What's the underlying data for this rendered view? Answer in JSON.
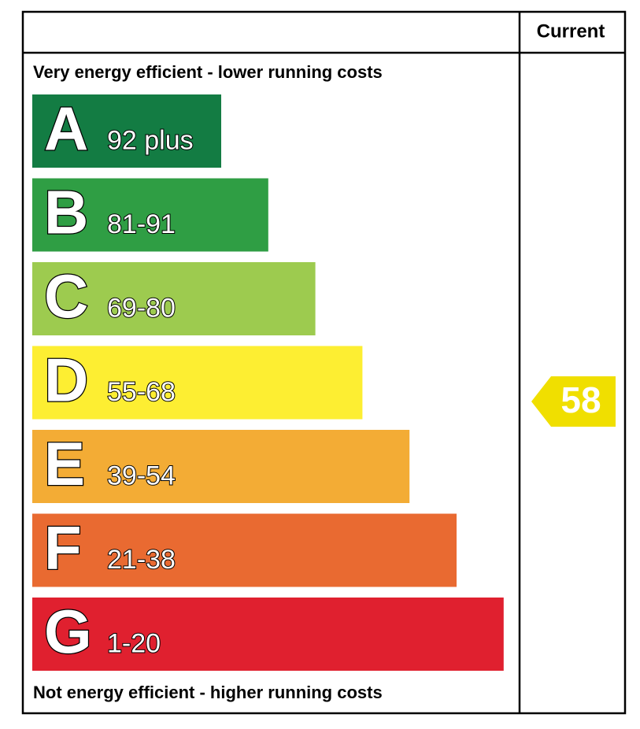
{
  "header": {
    "column": "Current"
  },
  "top_label": "Very energy efficient - lower running costs",
  "bottom_label": "Not energy efficient - higher running costs",
  "bands": [
    {
      "letter": "A",
      "range": "92 plus",
      "color": "#137c43"
    },
    {
      "letter": "B",
      "range": "81-91",
      "color": "#2f9e44"
    },
    {
      "letter": "C",
      "range": "69-80",
      "color": "#9dcb4f"
    },
    {
      "letter": "D",
      "range": "55-68",
      "color": "#fdee32"
    },
    {
      "letter": "E",
      "range": "39-54",
      "color": "#f3ac35"
    },
    {
      "letter": "F",
      "range": "21-38",
      "color": "#e96a31"
    },
    {
      "letter": "G",
      "range": "1-20",
      "color": "#e0202f"
    }
  ],
  "current": {
    "value": "58",
    "color": "#f0df00"
  }
}
